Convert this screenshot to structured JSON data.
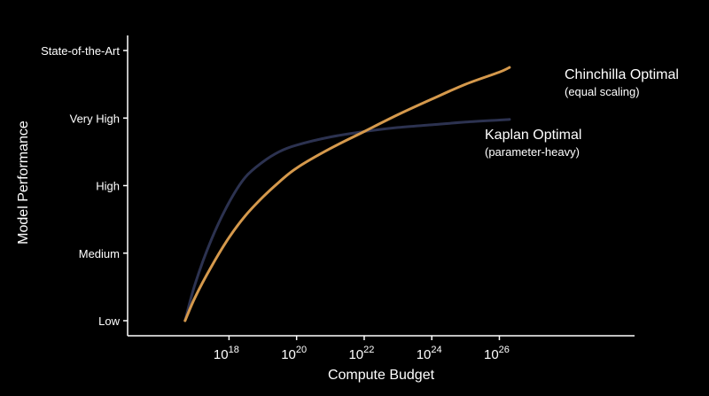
{
  "chart_data": {
    "type": "line",
    "xlabel": "Compute Budget",
    "ylabel": "Model Performance",
    "x_scale": "log10",
    "x_ticks": [
      {
        "base": "10",
        "exp": "18",
        "value": 1e+18
      },
      {
        "base": "10",
        "exp": "20",
        "value": 1e+20
      },
      {
        "base": "10",
        "exp": "22",
        "value": 1e+22
      },
      {
        "base": "10",
        "exp": "24",
        "value": 1e+24
      },
      {
        "base": "10",
        "exp": "26",
        "value": 1e+26
      }
    ],
    "xlim": [
      1000000000000000.0,
      1e+30
    ],
    "y_ticks": [
      "Low",
      "Medium",
      "High",
      "Very High",
      "State-of-the-Art"
    ],
    "ylim": [
      0,
      4.2
    ],
    "grid": false,
    "series": [
      {
        "name": "Kaplan Optimal",
        "sublabel": "(parameter-heavy)",
        "color": "#2c3250",
        "x": [
          5e+16,
          1e+17,
          3e+17,
          1e+18,
          3e+18,
          1e+19,
          3e+19,
          1e+20,
          1e+21,
          1e+22,
          1e+23,
          1e+24,
          1e+25,
          1e+26,
          2e+26
        ],
        "y": [
          0.0,
          0.55,
          1.2,
          1.75,
          2.12,
          2.35,
          2.5,
          2.6,
          2.72,
          2.8,
          2.86,
          2.9,
          2.94,
          2.97,
          2.98
        ]
      },
      {
        "name": "Chinchilla Optimal",
        "sublabel": "(equal scaling)",
        "color": "#d5994c",
        "x": [
          5e+16,
          1e+17,
          3e+17,
          1e+18,
          3e+18,
          1e+19,
          3e+19,
          1e+20,
          1e+21,
          1e+22,
          1e+23,
          1e+24,
          1e+25,
          1e+26,
          2e+26
        ],
        "y": [
          0.0,
          0.35,
          0.8,
          1.23,
          1.55,
          1.83,
          2.05,
          2.26,
          2.55,
          2.8,
          3.05,
          3.28,
          3.5,
          3.68,
          3.75
        ]
      }
    ]
  }
}
